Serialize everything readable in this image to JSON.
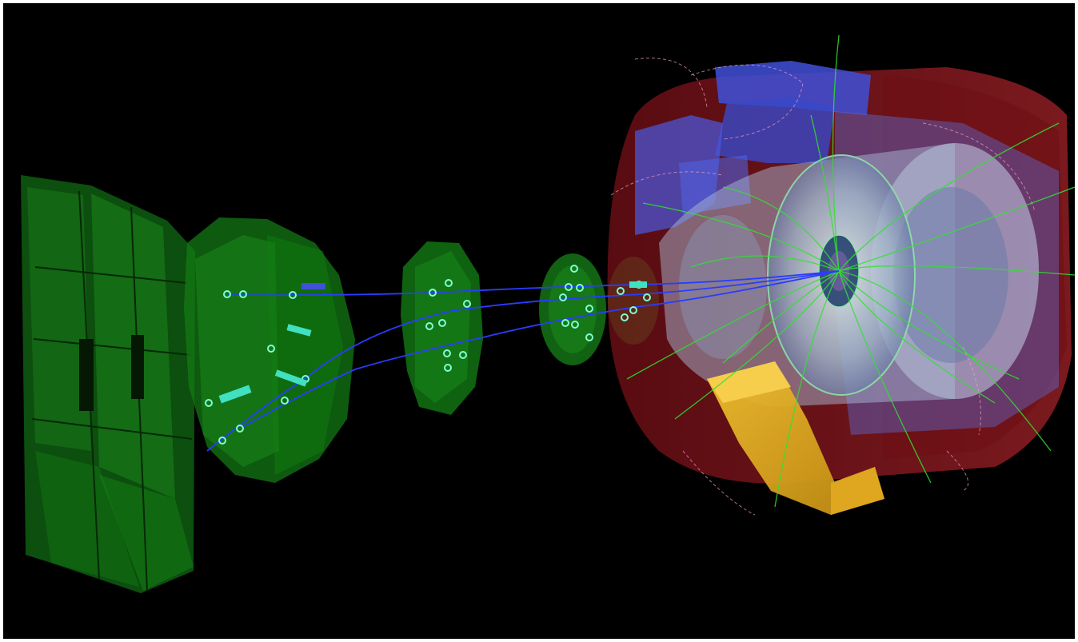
{
  "viewer": {
    "background_color": "#000000",
    "frame_color": "#ffffff"
  },
  "colors": {
    "muon_station": "#1f8a1f",
    "muon_station_dark": "#0d3d0d",
    "hit_marker": "#7fffd4",
    "muon_track": "#2030ff",
    "calorimeter_outer": "#8b1a22",
    "calorimeter_inner": "#b8c8e0",
    "endcap_disk": "#c8d8cc",
    "magnet_blue": "#4050d8",
    "magnet_yellow": "#e8b020",
    "charged_track": "#30e030",
    "low_pt_track": "#f0a0c0"
  }
}
